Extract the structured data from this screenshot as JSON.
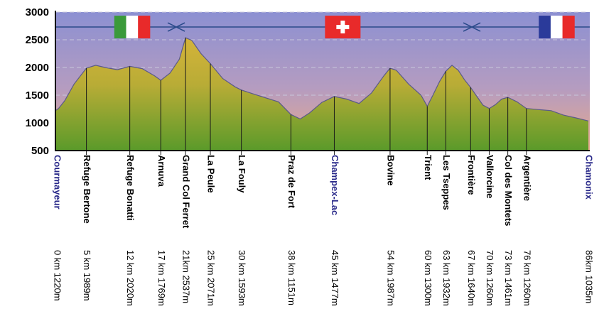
{
  "chart_data": {
    "type": "area",
    "title": "",
    "xlabel": "",
    "ylabel": "",
    "xlim": [
      0,
      86
    ],
    "ylim": [
      500,
      3000
    ],
    "yticks": [
      500,
      1000,
      1500,
      2000,
      2500,
      3000
    ],
    "grid": "dashed horizontal",
    "colors": {
      "sky_top": "#8c90d2",
      "sky_bottom": "#e8a88a",
      "terrain_top": "#d8b43a",
      "terrain_bottom": "#5a9a2a",
      "profile_line": "#5a5a8a",
      "border_line": "#2a4a8a",
      "town_label": "#2a2a8a"
    },
    "profile": {
      "x": [
        0,
        0.5,
        1.5,
        3,
        5,
        6.5,
        8,
        10,
        12,
        14,
        16,
        17,
        18.5,
        20,
        21,
        22,
        23.5,
        25,
        27,
        29,
        30,
        32,
        34,
        36,
        38,
        39.5,
        41,
        43,
        45,
        47,
        49,
        51,
        53,
        54,
        55,
        57,
        59,
        60,
        61,
        62,
        63,
        64,
        65,
        66,
        67,
        68,
        69,
        70,
        71,
        72,
        73,
        74.5,
        76,
        78,
        80,
        82,
        84,
        86
      ],
      "y": [
        1220,
        1260,
        1400,
        1700,
        1989,
        2040,
        2000,
        1960,
        2020,
        1980,
        1850,
        1769,
        1900,
        2150,
        2537,
        2490,
        2250,
        2071,
        1800,
        1650,
        1593,
        1520,
        1450,
        1380,
        1151,
        1070,
        1180,
        1370,
        1477,
        1430,
        1350,
        1540,
        1850,
        1987,
        1950,
        1700,
        1500,
        1300,
        1520,
        1750,
        1932,
        2040,
        1950,
        1780,
        1640,
        1480,
        1320,
        1260,
        1330,
        1430,
        1461,
        1380,
        1260,
        1240,
        1220,
        1140,
        1090,
        1035
      ]
    },
    "waypoints": [
      {
        "name": "Courmayeur",
        "dist": "0 km 1220m",
        "km": 0,
        "alt": 1220,
        "town": true
      },
      {
        "name": "Refuge Bertone",
        "dist": "5 km 1989m",
        "km": 5,
        "alt": 1989,
        "town": false
      },
      {
        "name": "Refuge Bonatti",
        "dist": "12 km 2020m",
        "km": 12,
        "alt": 2020,
        "town": false
      },
      {
        "name": "Arnuva",
        "dist": "17 km 1769m",
        "km": 17,
        "alt": 1769,
        "town": false
      },
      {
        "name": "Grand Col Ferret",
        "dist": "21km 2537m",
        "km": 21,
        "alt": 2537,
        "town": false
      },
      {
        "name": "La Peule",
        "dist": "25 km 2071m",
        "km": 25,
        "alt": 2071,
        "town": false
      },
      {
        "name": "La Fouly",
        "dist": "30 km 1593m",
        "km": 30,
        "alt": 1593,
        "town": false
      },
      {
        "name": "Praz de Fort",
        "dist": "38 km 1151m",
        "km": 38,
        "alt": 1151,
        "town": false
      },
      {
        "name": "Champex-Lac",
        "dist": "45 km 1477m",
        "km": 45,
        "alt": 1477,
        "town": true
      },
      {
        "name": "Bovine",
        "dist": "54 km 1987m",
        "km": 54,
        "alt": 1987,
        "town": false
      },
      {
        "name": "Trient",
        "dist": "60 km 1300m",
        "km": 60,
        "alt": 1300,
        "town": false
      },
      {
        "name": "Les Tseppes",
        "dist": "63 km 1932m",
        "km": 63,
        "alt": 1932,
        "town": false
      },
      {
        "name": "Frontière",
        "dist": "67 km 1640m",
        "km": 67,
        "alt": 1640,
        "town": false
      },
      {
        "name": "Vallorcine",
        "dist": "70 km 1260m",
        "km": 70,
        "alt": 1260,
        "town": false
      },
      {
        "name": "Col des Montets",
        "dist": "73 km 1461m",
        "km": 73,
        "alt": 1461,
        "town": false
      },
      {
        "name": "Argentière",
        "dist": "76 km 1260m",
        "km": 76,
        "alt": 1260,
        "town": false
      },
      {
        "name": "Chamonix",
        "dist": "86km 1035m",
        "km": 86,
        "alt": 1035,
        "town": true
      }
    ],
    "border_line_alt": 2730,
    "border_crossings_km": [
      19.5,
      67.2
    ],
    "flags": [
      {
        "country": "Italy",
        "km": 9.5,
        "colors": [
          "#3a9a3a",
          "#ffffff",
          "#e82a2a"
        ]
      },
      {
        "country": "Switzerland",
        "km": 43.5,
        "colors": [
          "#e82a2a",
          "#ffffff"
        ]
      },
      {
        "country": "France",
        "km": 78,
        "colors": [
          "#2a3a9a",
          "#ffffff",
          "#e82a2a"
        ]
      }
    ]
  }
}
